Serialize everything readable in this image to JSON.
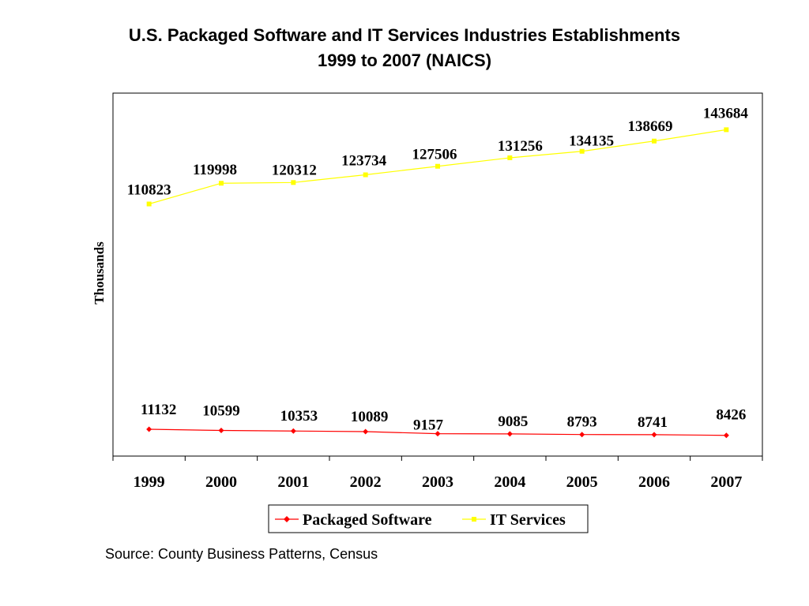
{
  "title_line1": "U.S. Packaged Software and IT Services Industries Establishments",
  "title_line2": "1999 to 2007 (NAICS)",
  "source": "Source:  County Business Patterns, Census",
  "chart_data": {
    "type": "line",
    "ylabel": "Thousands",
    "xlabel": "",
    "categories": [
      "1999",
      "2000",
      "2001",
      "2002",
      "2003",
      "2004",
      "2005",
      "2006",
      "2007"
    ],
    "series": [
      {
        "name": "Packaged Software",
        "color": "#ff0000",
        "marker": "diamond",
        "values": [
          11132,
          10599,
          10353,
          10089,
          9157,
          9085,
          8793,
          8741,
          8426
        ]
      },
      {
        "name": "IT Services",
        "color": "#ffff00",
        "marker": "square",
        "values": [
          110823,
          119998,
          120312,
          123734,
          127506,
          131256,
          134135,
          138669,
          143684
        ]
      }
    ],
    "legend": "bottom",
    "grid": false,
    "data_labels": true
  }
}
